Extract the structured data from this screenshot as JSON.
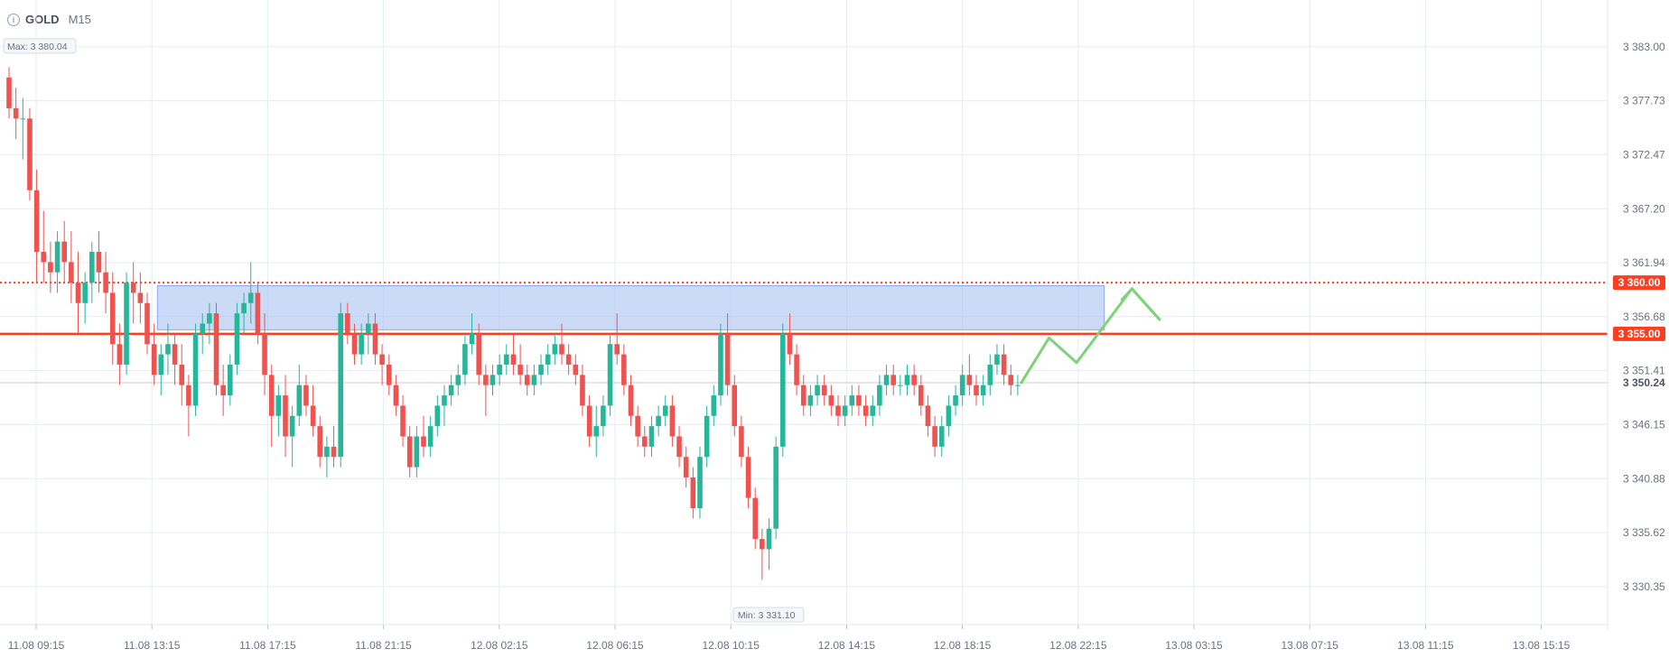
{
  "header": {
    "symbol": "GOLD",
    "timeframe": "M15"
  },
  "colors": {
    "bull": "#26b69a",
    "bear": "#ef5350",
    "support": "#ff3d1f",
    "resistance": "#ff3d1f",
    "zone_fill": "#aec6f2",
    "zone_stroke": "#8aaaf0",
    "arrow": "#7ed27a",
    "grid": "#e6ecf5"
  },
  "chart_data": {
    "type": "candlestick",
    "ylim": [
      3327.0,
      3386.5
    ],
    "y_ticks": [
      3383.0,
      3377.73,
      3372.47,
      3367.2,
      3361.94,
      3356.68,
      3351.41,
      3346.15,
      3340.88,
      3335.62,
      3330.35
    ],
    "y_tick_labels": [
      "3 383.00",
      "3 377.73",
      "3 372.47",
      "3 367.20",
      "3 361.94",
      "3 356.68",
      "3 351.41",
      "3 346.15",
      "3 340.88",
      "3 335.62",
      "3 330.35"
    ],
    "x_tick_labels": [
      "11.08 09:15",
      "11.08 13:15",
      "11.08 17:15",
      "11.08 21:15",
      "12.08 02:15",
      "12.08 06:15",
      "12.08 10:15",
      "12.08 14:15",
      "12.08 18:15",
      "12.08 22:15",
      "13.08 03:15",
      "13.08 07:15",
      "13.08 11:15",
      "13.08 15:15"
    ],
    "max_label": "Max: 3 380.04",
    "min_label": "Min: 3 331.10",
    "levels": [
      {
        "value": 3360.0,
        "label": "3 360.00",
        "style": "dotted"
      },
      {
        "value": 3355.0,
        "label": "3 355.00",
        "style": "solid"
      }
    ],
    "current_price": {
      "value": 3350.24,
      "label": "3 350.24"
    },
    "zone": {
      "from_candle": 22,
      "to_candle": 158,
      "low": 3355.4,
      "high": 3359.7
    },
    "candles": [
      [
        3380,
        3381,
        3376,
        3377
      ],
      [
        3377,
        3379,
        3374,
        3376
      ],
      [
        3376,
        3378,
        3372,
        3376
      ],
      [
        3376,
        3377,
        3368,
        3369
      ],
      [
        3369,
        3371,
        3360,
        3363
      ],
      [
        3363,
        3367,
        3360,
        3362
      ],
      [
        3362,
        3364,
        3359,
        3361
      ],
      [
        3361,
        3365,
        3359,
        3364
      ],
      [
        3364,
        3366,
        3360,
        3362
      ],
      [
        3362,
        3365,
        3358,
        3360
      ],
      [
        3360,
        3363,
        3355,
        3358
      ],
      [
        3358,
        3361,
        3356,
        3360
      ],
      [
        3360,
        3364,
        3358,
        3363
      ],
      [
        3363,
        3365,
        3359,
        3361
      ],
      [
        3361,
        3363,
        3357,
        3359
      ],
      [
        3359,
        3361,
        3352,
        3354
      ],
      [
        3354,
        3356,
        3350,
        3352
      ],
      [
        3352,
        3361,
        3351,
        3360
      ],
      [
        3360,
        3362,
        3356,
        3359
      ],
      [
        3359,
        3361,
        3356,
        3358
      ],
      [
        3358,
        3359,
        3353,
        3354
      ],
      [
        3354,
        3356,
        3350,
        3351
      ],
      [
        3351,
        3354,
        3349,
        3353
      ],
      [
        3353,
        3356,
        3351,
        3354
      ],
      [
        3354,
        3355,
        3350,
        3352
      ],
      [
        3352,
        3354,
        3348,
        3350
      ],
      [
        3350,
        3351,
        3345,
        3348
      ],
      [
        3348,
        3356,
        3347,
        3355
      ],
      [
        3355,
        3357,
        3353,
        3356
      ],
      [
        3356,
        3358,
        3354,
        3357
      ],
      [
        3357,
        3358,
        3349,
        3350
      ],
      [
        3350,
        3352,
        3347,
        3349
      ],
      [
        3349,
        3353,
        3348,
        3352
      ],
      [
        3352,
        3358,
        3351,
        3357
      ],
      [
        3357,
        3359,
        3355,
        3358
      ],
      [
        3358,
        3362,
        3356,
        3359
      ],
      [
        3359,
        3360,
        3354,
        3355
      ],
      [
        3355,
        3357,
        3349,
        3351
      ],
      [
        3351,
        3352,
        3344,
        3347
      ],
      [
        3347,
        3350,
        3345,
        3349
      ],
      [
        3349,
        3351,
        3343,
        3345
      ],
      [
        3345,
        3348,
        3342,
        3347
      ],
      [
        3347,
        3352,
        3346,
        3350
      ],
      [
        3350,
        3351,
        3347,
        3348
      ],
      [
        3348,
        3350,
        3345,
        3346
      ],
      [
        3346,
        3347,
        3342,
        3343
      ],
      [
        3343,
        3345,
        3341,
        3344
      ],
      [
        3344,
        3346,
        3342,
        3343
      ],
      [
        3343,
        3358,
        3342,
        3357
      ],
      [
        3357,
        3358,
        3354,
        3355
      ],
      [
        3355,
        3356,
        3352,
        3353
      ],
      [
        3353,
        3356,
        3352,
        3355
      ],
      [
        3355,
        3357,
        3353,
        3356
      ],
      [
        3356,
        3357,
        3352,
        3353
      ],
      [
        3353,
        3354,
        3350,
        3352
      ],
      [
        3352,
        3353,
        3349,
        3350
      ],
      [
        3350,
        3351,
        3347,
        3348
      ],
      [
        3348,
        3349,
        3344,
        3345
      ],
      [
        3345,
        3346,
        3341,
        3342
      ],
      [
        3342,
        3346,
        3341,
        3345
      ],
      [
        3345,
        3347,
        3343,
        3344
      ],
      [
        3344,
        3347,
        3343,
        3346
      ],
      [
        3346,
        3349,
        3345,
        3348
      ],
      [
        3348,
        3350,
        3346,
        3349
      ],
      [
        3349,
        3351,
        3348,
        3350
      ],
      [
        3350,
        3352,
        3349,
        3351
      ],
      [
        3351,
        3355,
        3350,
        3354
      ],
      [
        3354,
        3357,
        3353,
        3355
      ],
      [
        3355,
        3356,
        3350,
        3351
      ],
      [
        3351,
        3352,
        3347,
        3350
      ],
      [
        3350,
        3352,
        3349,
        3351
      ],
      [
        3351,
        3353,
        3350,
        3352
      ],
      [
        3352,
        3354,
        3351,
        3353
      ],
      [
        3353,
        3355,
        3351,
        3352
      ],
      [
        3352,
        3354,
        3350,
        3351
      ],
      [
        3351,
        3352,
        3349,
        3350
      ],
      [
        3350,
        3352,
        3349,
        3351
      ],
      [
        3351,
        3353,
        3350,
        3352
      ],
      [
        3352,
        3354,
        3351,
        3353
      ],
      [
        3353,
        3355,
        3352,
        3354
      ],
      [
        3354,
        3356,
        3352,
        3353
      ],
      [
        3353,
        3354,
        3351,
        3352
      ],
      [
        3352,
        3353,
        3350,
        3351
      ],
      [
        3351,
        3352,
        3347,
        3348
      ],
      [
        3348,
        3349,
        3344,
        3345
      ],
      [
        3345,
        3348,
        3343,
        3346
      ],
      [
        3346,
        3349,
        3345,
        3348
      ],
      [
        3348,
        3355,
        3347,
        3354
      ],
      [
        3354,
        3357,
        3352,
        3353
      ],
      [
        3353,
        3354,
        3349,
        3350
      ],
      [
        3350,
        3351,
        3346,
        3347
      ],
      [
        3347,
        3348,
        3344,
        3345
      ],
      [
        3345,
        3346,
        3343,
        3344
      ],
      [
        3344,
        3347,
        3343,
        3346
      ],
      [
        3346,
        3348,
        3345,
        3347
      ],
      [
        3347,
        3349,
        3346,
        3348
      ],
      [
        3348,
        3349,
        3344,
        3345
      ],
      [
        3345,
        3346,
        3342,
        3343
      ],
      [
        3343,
        3344,
        3340,
        3341
      ],
      [
        3341,
        3342,
        3337,
        3338
      ],
      [
        3338,
        3344,
        3337,
        3343
      ],
      [
        3343,
        3348,
        3342,
        3347
      ],
      [
        3347,
        3350,
        3346,
        3349
      ],
      [
        3349,
        3356,
        3348,
        3355
      ],
      [
        3355,
        3357,
        3349,
        3350
      ],
      [
        3350,
        3351,
        3345,
        3346
      ],
      [
        3346,
        3347,
        3342,
        3343
      ],
      [
        3343,
        3344,
        3338,
        3339
      ],
      [
        3339,
        3340,
        3334,
        3335
      ],
      [
        3335,
        3336,
        3331,
        3334
      ],
      [
        3334,
        3337,
        3332,
        3336
      ],
      [
        3336,
        3345,
        3335,
        3344
      ],
      [
        3344,
        3356,
        3343,
        3355
      ],
      [
        3355,
        3357,
        3352,
        3353
      ],
      [
        3353,
        3354,
        3349,
        3350
      ],
      [
        3350,
        3351,
        3347,
        3348
      ],
      [
        3348,
        3350,
        3347,
        3349
      ],
      [
        3349,
        3351,
        3348,
        3350
      ],
      [
        3350,
        3351,
        3348,
        3349
      ],
      [
        3349,
        3350,
        3347,
        3348
      ],
      [
        3348,
        3349,
        3346,
        3347
      ],
      [
        3347,
        3349,
        3346,
        3348
      ],
      [
        3348,
        3350,
        3347,
        3349
      ],
      [
        3349,
        3350,
        3347,
        3348
      ],
      [
        3348,
        3349,
        3346,
        3347
      ],
      [
        3347,
        3349,
        3346,
        3348
      ],
      [
        3348,
        3351,
        3347,
        3350
      ],
      [
        3350,
        3352,
        3349,
        3351
      ],
      [
        3351,
        3352,
        3349,
        3350
      ],
      [
        3350,
        3351,
        3349,
        3350
      ],
      [
        3350,
        3352,
        3349,
        3351
      ],
      [
        3351,
        3352,
        3349,
        3350
      ],
      [
        3350,
        3351,
        3347,
        3348
      ],
      [
        3348,
        3349,
        3345,
        3346
      ],
      [
        3346,
        3347,
        3343,
        3344
      ],
      [
        3344,
        3347,
        3343,
        3346
      ],
      [
        3346,
        3349,
        3345,
        3348
      ],
      [
        3348,
        3350,
        3347,
        3349
      ],
      [
        3349,
        3352,
        3348,
        3351
      ],
      [
        3351,
        3353,
        3349,
        3350
      ],
      [
        3350,
        3351,
        3348,
        3349
      ],
      [
        3349,
        3351,
        3348,
        3350
      ],
      [
        3350,
        3353,
        3349,
        3352
      ],
      [
        3352,
        3354,
        3351,
        3353
      ],
      [
        3353,
        3354,
        3350,
        3351
      ],
      [
        3351,
        3352,
        3349,
        3350
      ],
      [
        3350,
        3351,
        3349,
        3350
      ]
    ],
    "projection": [
      [
        3350.24,
        0
      ],
      [
        3354.6,
        4
      ],
      [
        3352.2,
        8
      ],
      [
        3359.4,
        16
      ],
      [
        3356.4,
        20
      ]
    ]
  }
}
